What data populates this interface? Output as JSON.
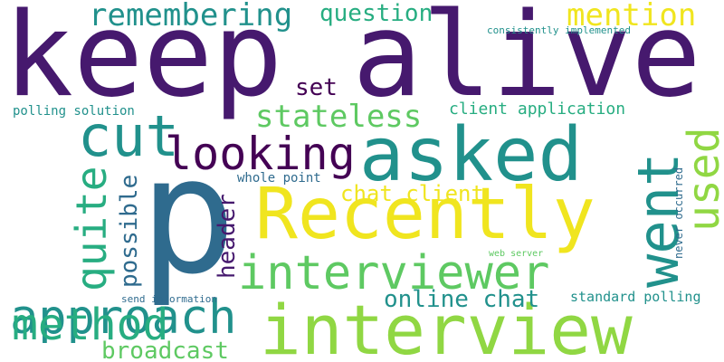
{
  "word_cloud": {
    "colors": {
      "dark_purple": "#46196e",
      "indigo": "#2f6b8e",
      "teal": "#21918c",
      "green": "#27ad81",
      "lime": "#5ec962",
      "yellow_green": "#90d743",
      "yellow": "#f0e51f",
      "deep_purple": "#440154"
    },
    "words": [
      {
        "text": "keep alive"
      },
      {
        "text": "p"
      },
      {
        "text": "Recently"
      },
      {
        "text": "interview"
      },
      {
        "text": "asked"
      },
      {
        "text": "interviewer"
      },
      {
        "text": "approach"
      },
      {
        "text": "looking"
      },
      {
        "text": "cut"
      },
      {
        "text": "method"
      },
      {
        "text": "quite"
      },
      {
        "text": "went"
      },
      {
        "text": "used"
      },
      {
        "text": "remembering"
      },
      {
        "text": "mention"
      },
      {
        "text": "question"
      },
      {
        "text": "stateless"
      },
      {
        "text": "set"
      },
      {
        "text": "chat client"
      },
      {
        "text": "online chat"
      },
      {
        "text": "broadcast"
      },
      {
        "text": "possible"
      },
      {
        "text": "header"
      },
      {
        "text": "client application"
      },
      {
        "text": "polling solution"
      },
      {
        "text": "whole point"
      },
      {
        "text": "standard polling"
      },
      {
        "text": "never occurred"
      },
      {
        "text": "consistently implemented"
      },
      {
        "text": "send information"
      },
      {
        "text": "web server"
      }
    ]
  }
}
